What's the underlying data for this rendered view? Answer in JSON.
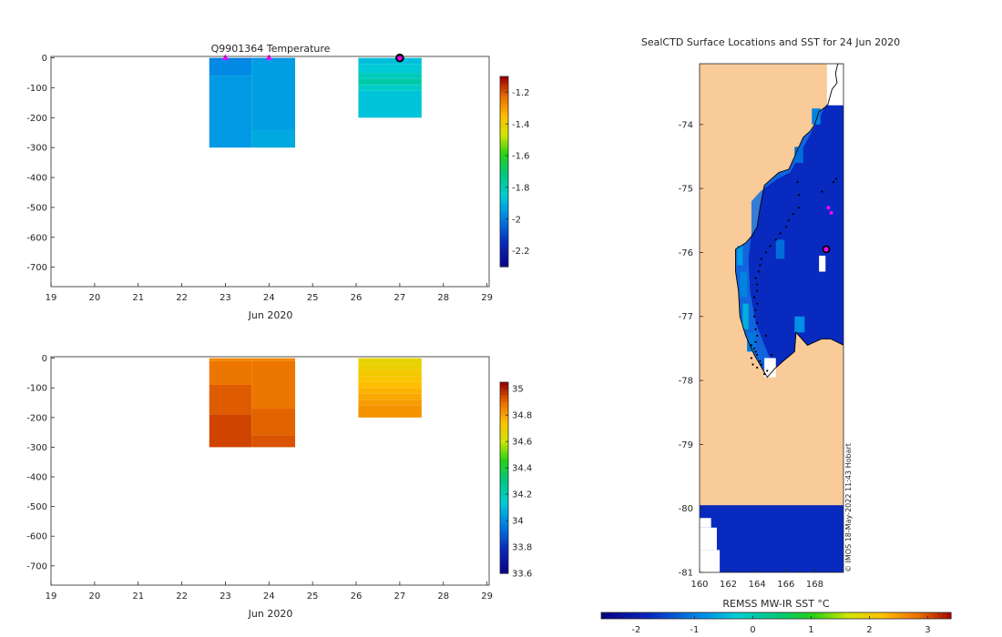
{
  "figure": {
    "credit": "© IMOS 18-May-2022 11:43 Hobart"
  },
  "colors": {
    "land": "#f9cb99",
    "ocean_cold": "#0434b8",
    "axis": "#262626",
    "profile_marker": "#ff00ff",
    "current_marker_edge": "#000000",
    "coast": "#000000",
    "track": "#000000"
  },
  "chart_data": [
    {
      "id": "temperature",
      "type": "heatmap",
      "title": "Q9901364  Temperature",
      "xlabel": "Jun 2020",
      "ylabel": "",
      "xlim": [
        19,
        29.05
      ],
      "ylim": [
        -765,
        5
      ],
      "xticks": [
        19,
        20,
        21,
        22,
        23,
        24,
        25,
        26,
        27,
        28,
        29
      ],
      "xtick_labels": [
        "19",
        "20",
        "21",
        "22",
        "23",
        "24",
        "25",
        "26",
        "27",
        "28",
        "29"
      ],
      "yticks": [
        0,
        -100,
        -200,
        -300,
        -400,
        -500,
        -600,
        -700
      ],
      "ytick_labels": [
        "0",
        "-100",
        "-200",
        "-300",
        "-400",
        "-500",
        "-600",
        "-700"
      ],
      "colorbar": {
        "range": [
          -2.3,
          -1.1
        ],
        "ticks": [
          -1.2,
          -1.4,
          -1.6,
          -1.8,
          -2,
          -2.2
        ],
        "tick_labels": [
          "-1.2",
          "-1.4",
          "-1.6",
          "-1.8",
          "-2",
          "-2.2"
        ]
      },
      "columns": [
        {
          "x0": 22.63,
          "x1": 23.6,
          "cells": [
            {
              "top": 0,
              "bottom": -10,
              "value": -1.99
            },
            {
              "top": -10,
              "bottom": -60,
              "value": -1.97
            },
            {
              "top": -60,
              "bottom": -300,
              "value": -1.94
            }
          ]
        },
        {
          "x0": 23.6,
          "x1": 24.6,
          "cells": [
            {
              "top": 0,
              "bottom": -10,
              "value": -1.95
            },
            {
              "top": -10,
              "bottom": -240,
              "value": -1.93
            },
            {
              "top": -240,
              "bottom": -300,
              "value": -1.91
            }
          ]
        },
        {
          "x0": 26.05,
          "x1": 27.5,
          "cells": [
            {
              "top": 0,
              "bottom": -20,
              "value": -1.87
            },
            {
              "top": -20,
              "bottom": -50,
              "value": -1.85
            },
            {
              "top": -50,
              "bottom": -70,
              "value": -1.8
            },
            {
              "top": -70,
              "bottom": -90,
              "value": -1.77
            },
            {
              "top": -90,
              "bottom": -110,
              "value": -1.82
            },
            {
              "top": -110,
              "bottom": -200,
              "value": -1.86
            }
          ]
        }
      ],
      "profile_markers": [
        {
          "x": 23,
          "y": 0
        },
        {
          "x": 24,
          "y": 0
        }
      ],
      "current_marker": {
        "x": 27,
        "y": 0
      }
    },
    {
      "id": "salinity",
      "type": "heatmap",
      "title": "",
      "xlabel": "Jun 2020",
      "ylabel": "",
      "xlim": [
        19,
        29.05
      ],
      "ylim": [
        -765,
        5
      ],
      "xticks": [
        19,
        20,
        21,
        22,
        23,
        24,
        25,
        26,
        27,
        28,
        29
      ],
      "xtick_labels": [
        "19",
        "20",
        "21",
        "22",
        "23",
        "24",
        "25",
        "26",
        "27",
        "28",
        "29"
      ],
      "yticks": [
        0,
        -100,
        -200,
        -300,
        -400,
        -500,
        -600,
        -700
      ],
      "ytick_labels": [
        "0",
        "-100",
        "-200",
        "-300",
        "-400",
        "-500",
        "-600",
        "-700"
      ],
      "colorbar": {
        "range": [
          33.6,
          35.05
        ],
        "ticks": [
          35,
          34.8,
          34.6,
          34.4,
          34.2,
          34,
          33.8,
          33.6
        ],
        "tick_labels": [
          "35",
          "34.8",
          "34.6",
          "34.4",
          "34.2",
          "34",
          "33.8",
          "33.6"
        ]
      },
      "columns": [
        {
          "x0": 22.63,
          "x1": 23.6,
          "cells": [
            {
              "top": 0,
              "bottom": -10,
              "value": 34.86
            },
            {
              "top": -10,
              "bottom": -90,
              "value": 34.89
            },
            {
              "top": -90,
              "bottom": -190,
              "value": 34.93
            },
            {
              "top": -190,
              "bottom": -300,
              "value": 34.96
            }
          ]
        },
        {
          "x0": 23.6,
          "x1": 24.6,
          "cells": [
            {
              "top": 0,
              "bottom": -10,
              "value": 34.86
            },
            {
              "top": -10,
              "bottom": -170,
              "value": 34.89
            },
            {
              "top": -170,
              "bottom": -260,
              "value": 34.92
            },
            {
              "top": -260,
              "bottom": -300,
              "value": 34.94
            }
          ]
        },
        {
          "x0": 26.05,
          "x1": 27.5,
          "cells": [
            {
              "top": 0,
              "bottom": -20,
              "value": 34.68
            },
            {
              "top": -20,
              "bottom": -40,
              "value": 34.7
            },
            {
              "top": -40,
              "bottom": -60,
              "value": 34.72
            },
            {
              "top": -60,
              "bottom": -80,
              "value": 34.74
            },
            {
              "top": -80,
              "bottom": -100,
              "value": 34.76
            },
            {
              "top": -100,
              "bottom": -120,
              "value": 34.78
            },
            {
              "top": -120,
              "bottom": -140,
              "value": 34.8
            },
            {
              "top": -140,
              "bottom": -160,
              "value": 34.82
            },
            {
              "top": -160,
              "bottom": -200,
              "value": 34.84
            }
          ]
        }
      ]
    },
    {
      "id": "sst_map",
      "type": "heatmap",
      "title": "SealCTD Surface Locations and SST for 24 Jun 2020",
      "xlabel": "",
      "ylabel": "",
      "xlim": [
        160,
        170
      ],
      "ylim": [
        -81,
        -73.05
      ],
      "xticks": [
        160,
        162,
        164,
        166,
        168
      ],
      "xtick_labels": [
        "160",
        "162",
        "164",
        "166",
        "168"
      ],
      "yticks": [
        -74,
        -75,
        -76,
        -77,
        -78,
        -79,
        -80,
        -81
      ],
      "ytick_labels": [
        "-74",
        "-75",
        "-76",
        "-77",
        "-78",
        "-79",
        "-80",
        "-81"
      ],
      "colorbar": {
        "label": "REMSS MW-IR SST °C",
        "range": [
          -2.6,
          3.4
        ],
        "ticks": [
          -2,
          -1,
          0,
          1,
          2,
          3
        ],
        "tick_labels": [
          "-2",
          "-1",
          "0",
          "1",
          "2",
          "3"
        ]
      },
      "cold_sst": -1.8,
      "coast": [
        [
          170,
          -73.05
        ],
        [
          169.6,
          -73.05
        ],
        [
          169.45,
          -73.2
        ],
        [
          169.55,
          -73.35
        ],
        [
          169.2,
          -73.45
        ],
        [
          168.9,
          -73.7
        ],
        [
          168.3,
          -73.8
        ],
        [
          168.0,
          -74.0
        ],
        [
          167.7,
          -74.1
        ],
        [
          167.2,
          -74.2
        ],
        [
          166.9,
          -74.35
        ],
        [
          166.6,
          -74.5
        ],
        [
          166.2,
          -74.7
        ],
        [
          165.5,
          -74.75
        ],
        [
          164.5,
          -74.95
        ],
        [
          164.2,
          -75.3
        ],
        [
          164.0,
          -75.6
        ],
        [
          163.6,
          -75.75
        ],
        [
          163.2,
          -75.85
        ],
        [
          162.5,
          -75.95
        ],
        [
          162.5,
          -76.3
        ],
        [
          162.7,
          -76.6
        ],
        [
          162.8,
          -77.0
        ],
        [
          163.2,
          -77.3
        ],
        [
          163.8,
          -77.6
        ],
        [
          164.7,
          -77.95
        ],
        [
          165.2,
          -77.82
        ],
        [
          165.8,
          -77.7
        ],
        [
          166.6,
          -77.55
        ],
        [
          166.7,
          -77.25
        ],
        [
          167.5,
          -77.45
        ],
        [
          168.5,
          -77.35
        ],
        [
          169.1,
          -77.35
        ],
        [
          170,
          -77.45
        ]
      ],
      "shelf_band": [
        [
          163.6,
          -75.2
        ],
        [
          164.2,
          -75.05
        ],
        [
          165.4,
          -74.85
        ],
        [
          166.3,
          -74.75
        ],
        [
          167.0,
          -74.45
        ],
        [
          168.3,
          -73.9
        ],
        [
          169.5,
          -73.4
        ],
        [
          170,
          -73.3
        ],
        [
          170,
          -73.05
        ],
        [
          169.6,
          -73.05
        ],
        [
          169.45,
          -73.2
        ],
        [
          169.55,
          -73.35
        ],
        [
          169.2,
          -73.45
        ],
        [
          168.9,
          -73.7
        ],
        [
          168.3,
          -73.8
        ],
        [
          168.0,
          -74.0
        ],
        [
          167.7,
          -74.1
        ],
        [
          167.2,
          -74.2
        ],
        [
          166.9,
          -74.35
        ],
        [
          166.6,
          -74.5
        ],
        [
          166.2,
          -74.7
        ],
        [
          165.5,
          -74.75
        ],
        [
          164.5,
          -74.95
        ],
        [
          164.2,
          -75.3
        ],
        [
          164.0,
          -75.6
        ],
        [
          163.6,
          -75.75
        ],
        [
          163.2,
          -75.85
        ],
        [
          162.5,
          -75.95
        ],
        [
          162.5,
          -76.3
        ],
        [
          162.7,
          -76.6
        ],
        [
          162.8,
          -77.0
        ],
        [
          163.2,
          -77.3
        ],
        [
          163.8,
          -77.6
        ],
        [
          164.7,
          -77.95
        ],
        [
          165.2,
          -77.82
        ],
        [
          164.6,
          -77.5
        ],
        [
          163.9,
          -77.1
        ],
        [
          163.5,
          -76.6
        ],
        [
          163.4,
          -76.1
        ],
        [
          163.6,
          -75.7
        ]
      ],
      "warm_cells": [
        {
          "lon0": 162.6,
          "lon1": 163.0,
          "lat0": -76.2,
          "lat1": -75.9,
          "value": -0.8
        },
        {
          "lon0": 162.8,
          "lon1": 163.3,
          "lat0": -76.7,
          "lat1": -76.3,
          "value": -1.0
        },
        {
          "lon0": 163.0,
          "lon1": 163.4,
          "lat0": -77.2,
          "lat1": -76.8,
          "value": -0.6
        },
        {
          "lon0": 163.3,
          "lon1": 163.9,
          "lat0": -77.55,
          "lat1": -77.25,
          "value": -1.1
        },
        {
          "lon0": 165.3,
          "lon1": 165.9,
          "lat0": -76.1,
          "lat1": -75.8,
          "value": -1.2
        },
        {
          "lon0": 166.6,
          "lon1": 167.3,
          "lat0": -77.25,
          "lat1": -77.0,
          "value": -0.9
        },
        {
          "lon0": 167.8,
          "lon1": 168.4,
          "lat0": -74.0,
          "lat1": -73.75,
          "value": -1.0
        },
        {
          "lon0": 166.6,
          "lon1": 167.2,
          "lat0": -74.6,
          "lat1": -74.35,
          "value": -1.2
        }
      ],
      "missing_cells": [
        {
          "lon0": 168.3,
          "lon1": 168.75,
          "lat0": -76.3,
          "lat1": -76.05
        },
        {
          "lon0": 164.5,
          "lon1": 165.3,
          "lat0": -77.95,
          "lat1": -77.65
        },
        {
          "lon0": 168.85,
          "lon1": 170,
          "lat0": -73.7,
          "lat1": -73.05
        }
      ],
      "lower_ocean": {
        "lat_top": -79.95,
        "lat_bottom": -81
      },
      "lower_missing": [
        {
          "lon0": 160,
          "lon1": 160.8,
          "lat0": -80.3,
          "lat1": -80.15
        },
        {
          "lon0": 160,
          "lon1": 161.2,
          "lat0": -80.65,
          "lat1": -80.3
        },
        {
          "lon0": 160,
          "lon1": 161.4,
          "lat0": -81,
          "lat1": -80.65
        }
      ],
      "track": [
        [
          164.3,
          -77.75
        ],
        [
          164.2,
          -77.7
        ],
        [
          164.0,
          -77.6
        ],
        [
          163.9,
          -77.55
        ],
        [
          163.8,
          -77.5
        ],
        [
          163.9,
          -77.4
        ],
        [
          164.0,
          -77.3
        ],
        [
          163.9,
          -77.2
        ],
        [
          164.0,
          -77.1
        ],
        [
          163.8,
          -77.0
        ],
        [
          163.9,
          -76.9
        ],
        [
          164.0,
          -76.8
        ],
        [
          163.8,
          -76.7
        ],
        [
          164.0,
          -76.6
        ],
        [
          164.0,
          -76.5
        ],
        [
          163.9,
          -76.4
        ],
        [
          164.1,
          -76.3
        ],
        [
          164.2,
          -76.2
        ],
        [
          164.3,
          -76.1
        ],
        [
          164.6,
          -76.0
        ],
        [
          164.9,
          -75.9
        ],
        [
          165.3,
          -75.8
        ],
        [
          165.6,
          -75.7
        ],
        [
          166.0,
          -75.6
        ],
        [
          166.2,
          -75.5
        ],
        [
          166.5,
          -75.4
        ],
        [
          166.9,
          -75.3
        ],
        [
          166.9,
          -75.1
        ],
        [
          166.8,
          -74.9
        ],
        [
          168.5,
          -75.05
        ],
        [
          169.3,
          -74.9
        ],
        [
          169.5,
          -74.85
        ],
        [
          164.5,
          -77.9
        ],
        [
          164.7,
          -77.85
        ],
        [
          165.0,
          -77.6
        ],
        [
          164.6,
          -77.3
        ],
        [
          163.6,
          -77.65
        ],
        [
          163.7,
          -77.75
        ],
        [
          164.0,
          -77.8
        ],
        [
          163.6,
          -77.45
        ]
      ],
      "profile_markers": [
        [
          168.95,
          -75.3
        ],
        [
          169.15,
          -75.38
        ]
      ],
      "current_marker": [
        168.8,
        -75.95
      ]
    }
  ]
}
